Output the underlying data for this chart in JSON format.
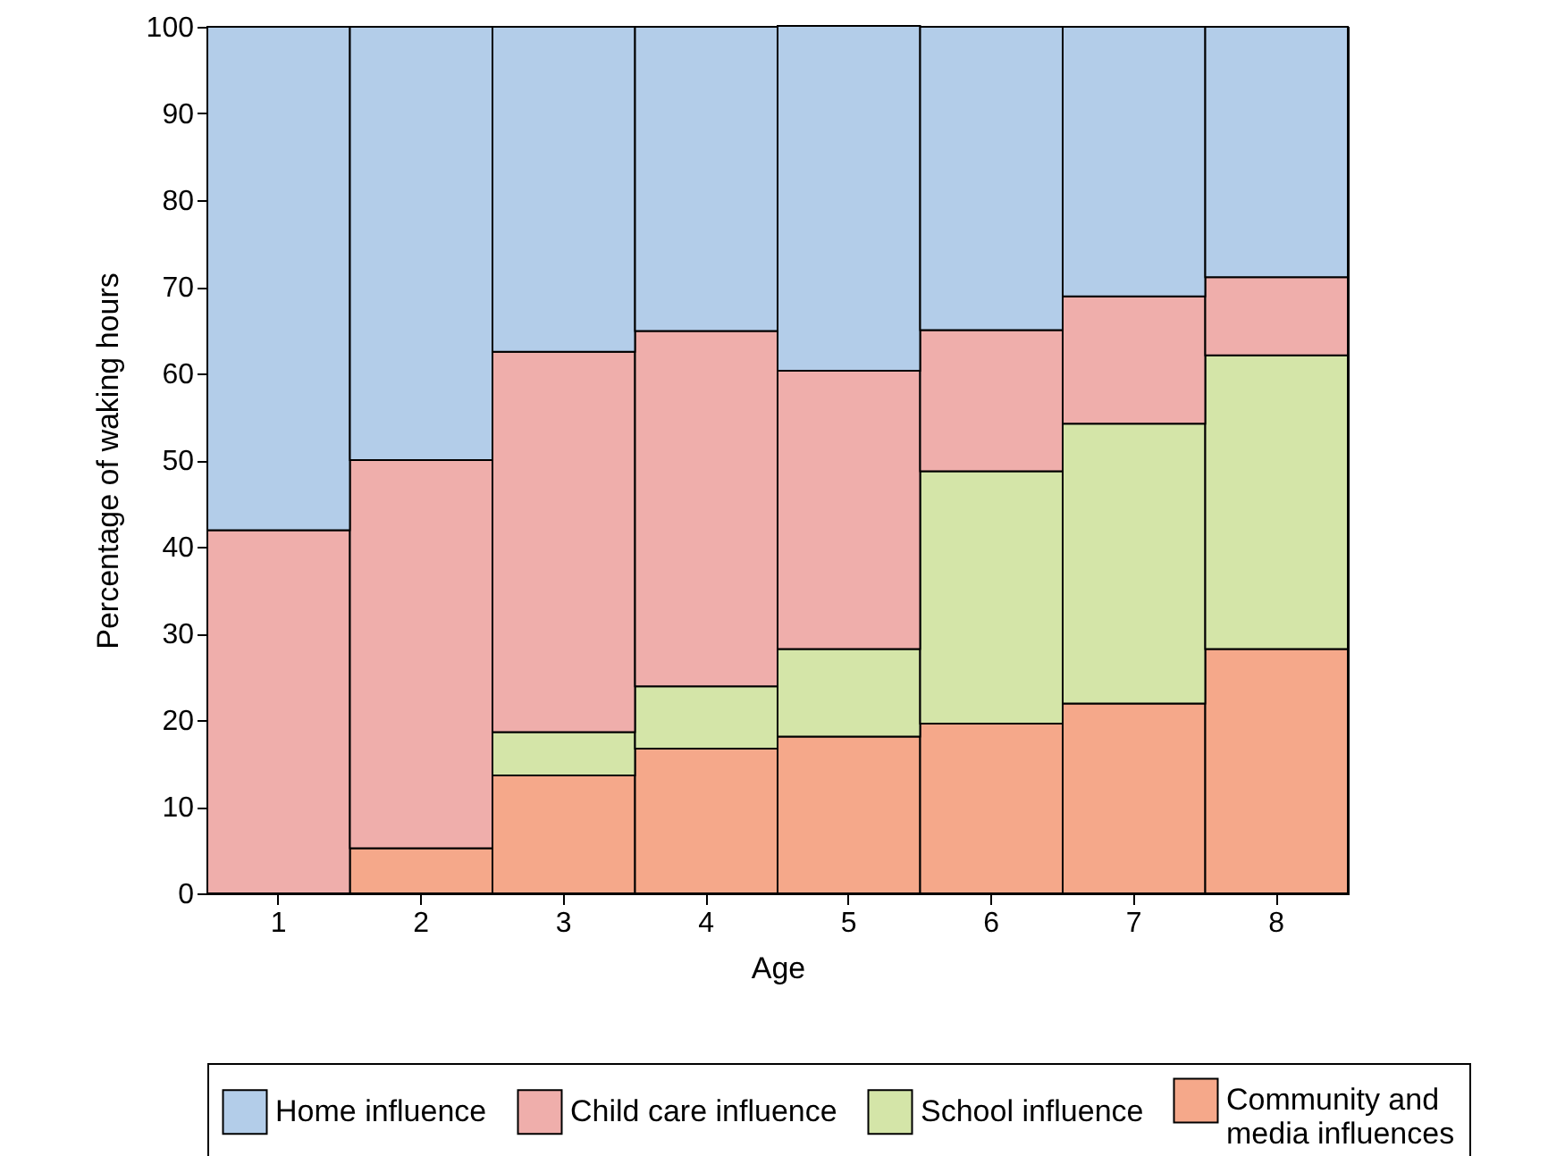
{
  "chart_data": {
    "type": "bar",
    "stacked": true,
    "xlabel": "Age",
    "ylabel": "Percentage of waking hours",
    "categories": [
      "1",
      "2",
      "3",
      "4",
      "5",
      "6",
      "7",
      "8"
    ],
    "series": [
      {
        "name": "Community and media influences",
        "color": "#f5a88a",
        "values": [
          null,
          5.2,
          13.6,
          16.7,
          18.1,
          19.6,
          21.9,
          28.2
        ]
      },
      {
        "name": "School influence",
        "color": "#d4e5a8",
        "values": [
          null,
          null,
          5.0,
          7.2,
          10.1,
          29.1,
          32.3,
          33.9
        ]
      },
      {
        "name": "Child care influence",
        "color": "#efaeab",
        "values": [
          41.9,
          44.8,
          43.9,
          41.0,
          32.1,
          16.3,
          14.7,
          9.0
        ]
      },
      {
        "name": "Home influence",
        "color": "#b3cde9",
        "values": [
          58.1,
          50.0,
          37.5,
          35.1,
          39.8,
          35.0,
          31.1,
          28.9
        ]
      }
    ],
    "ylim": [
      0,
      100
    ],
    "yticks": [
      0,
      10,
      20,
      30,
      40,
      50,
      60,
      70,
      80,
      90,
      100
    ],
    "legend": "bottom"
  }
}
